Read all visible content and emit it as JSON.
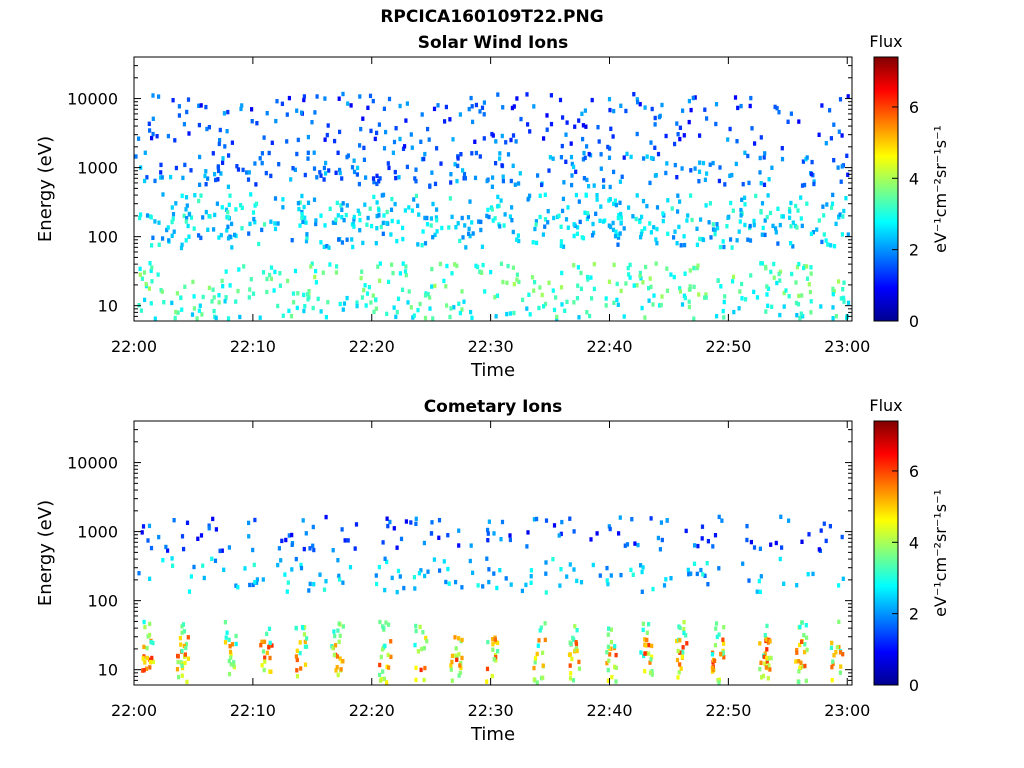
{
  "figure": {
    "title": "RPCICA160109T22.PNG"
  },
  "chart_data": [
    {
      "type": "heatmap",
      "title": "Solar Wind Ions",
      "xlabel": "Time",
      "ylabel": "Energy (eV)",
      "x_ticks": [
        "22:00",
        "22:10",
        "22:20",
        "22:30",
        "22:40",
        "22:50",
        "23:00"
      ],
      "x_range": [
        "22:00",
        "23:00"
      ],
      "y_scale": "log",
      "y_ticks": [
        10,
        100,
        1000,
        10000
      ],
      "y_tick_labels": [
        "10",
        "100",
        "1000",
        "10000"
      ],
      "y_range": [
        6,
        40000
      ],
      "colorbar": {
        "title": "Flux",
        "label": "eV⁻¹cm⁻²sr⁻¹s⁻¹",
        "range": [
          0,
          7.4
        ],
        "ticks": [
          0,
          2,
          4,
          6
        ],
        "colormap": "jet"
      },
      "grid": false,
      "description_points": {
        "energy_bands": [
          {
            "energy": 5000,
            "flux": 1.5
          },
          {
            "energy": 1000,
            "flux": 1.8
          },
          {
            "energy": 250,
            "flux": 2.6
          },
          {
            "energy": 130,
            "flux": 2.4
          },
          {
            "energy": 25,
            "flux": 3.3
          },
          {
            "energy": 8,
            "flux": 3.0
          }
        ]
      }
    },
    {
      "type": "heatmap",
      "title": "Cometary Ions",
      "xlabel": "Time",
      "ylabel": "Energy (eV)",
      "x_ticks": [
        "22:00",
        "22:10",
        "22:20",
        "22:30",
        "22:40",
        "22:50",
        "23:00"
      ],
      "x_range": [
        "22:00",
        "23:00"
      ],
      "y_scale": "log",
      "y_ticks": [
        10,
        100,
        1000,
        10000
      ],
      "y_tick_labels": [
        "10",
        "100",
        "1000",
        "10000"
      ],
      "y_range": [
        6,
        40000
      ],
      "colorbar": {
        "title": "Flux",
        "label": "eV⁻¹cm⁻²sr⁻¹s⁻¹",
        "range": [
          0,
          7.4
        ],
        "ticks": [
          0,
          2,
          4,
          6
        ],
        "colormap": "jet"
      },
      "grid": false,
      "description_points": {
        "energy_bands": [
          {
            "energy": 1000,
            "flux": 1.5
          },
          {
            "energy": 250,
            "flux": 2.4
          },
          {
            "energy": 30,
            "flux": 3.5
          },
          {
            "energy": 18,
            "flux": 5.5
          },
          {
            "energy": 10,
            "flux": 4.2
          }
        ],
        "pulse_times": [
          "22:01",
          "22:04",
          "22:08",
          "22:11",
          "22:14",
          "22:17",
          "22:21",
          "22:24",
          "22:27",
          "22:30",
          "22:34",
          "22:37",
          "22:40",
          "22:43",
          "22:46",
          "22:49",
          "22:53",
          "22:56",
          "22:59"
        ]
      }
    }
  ]
}
